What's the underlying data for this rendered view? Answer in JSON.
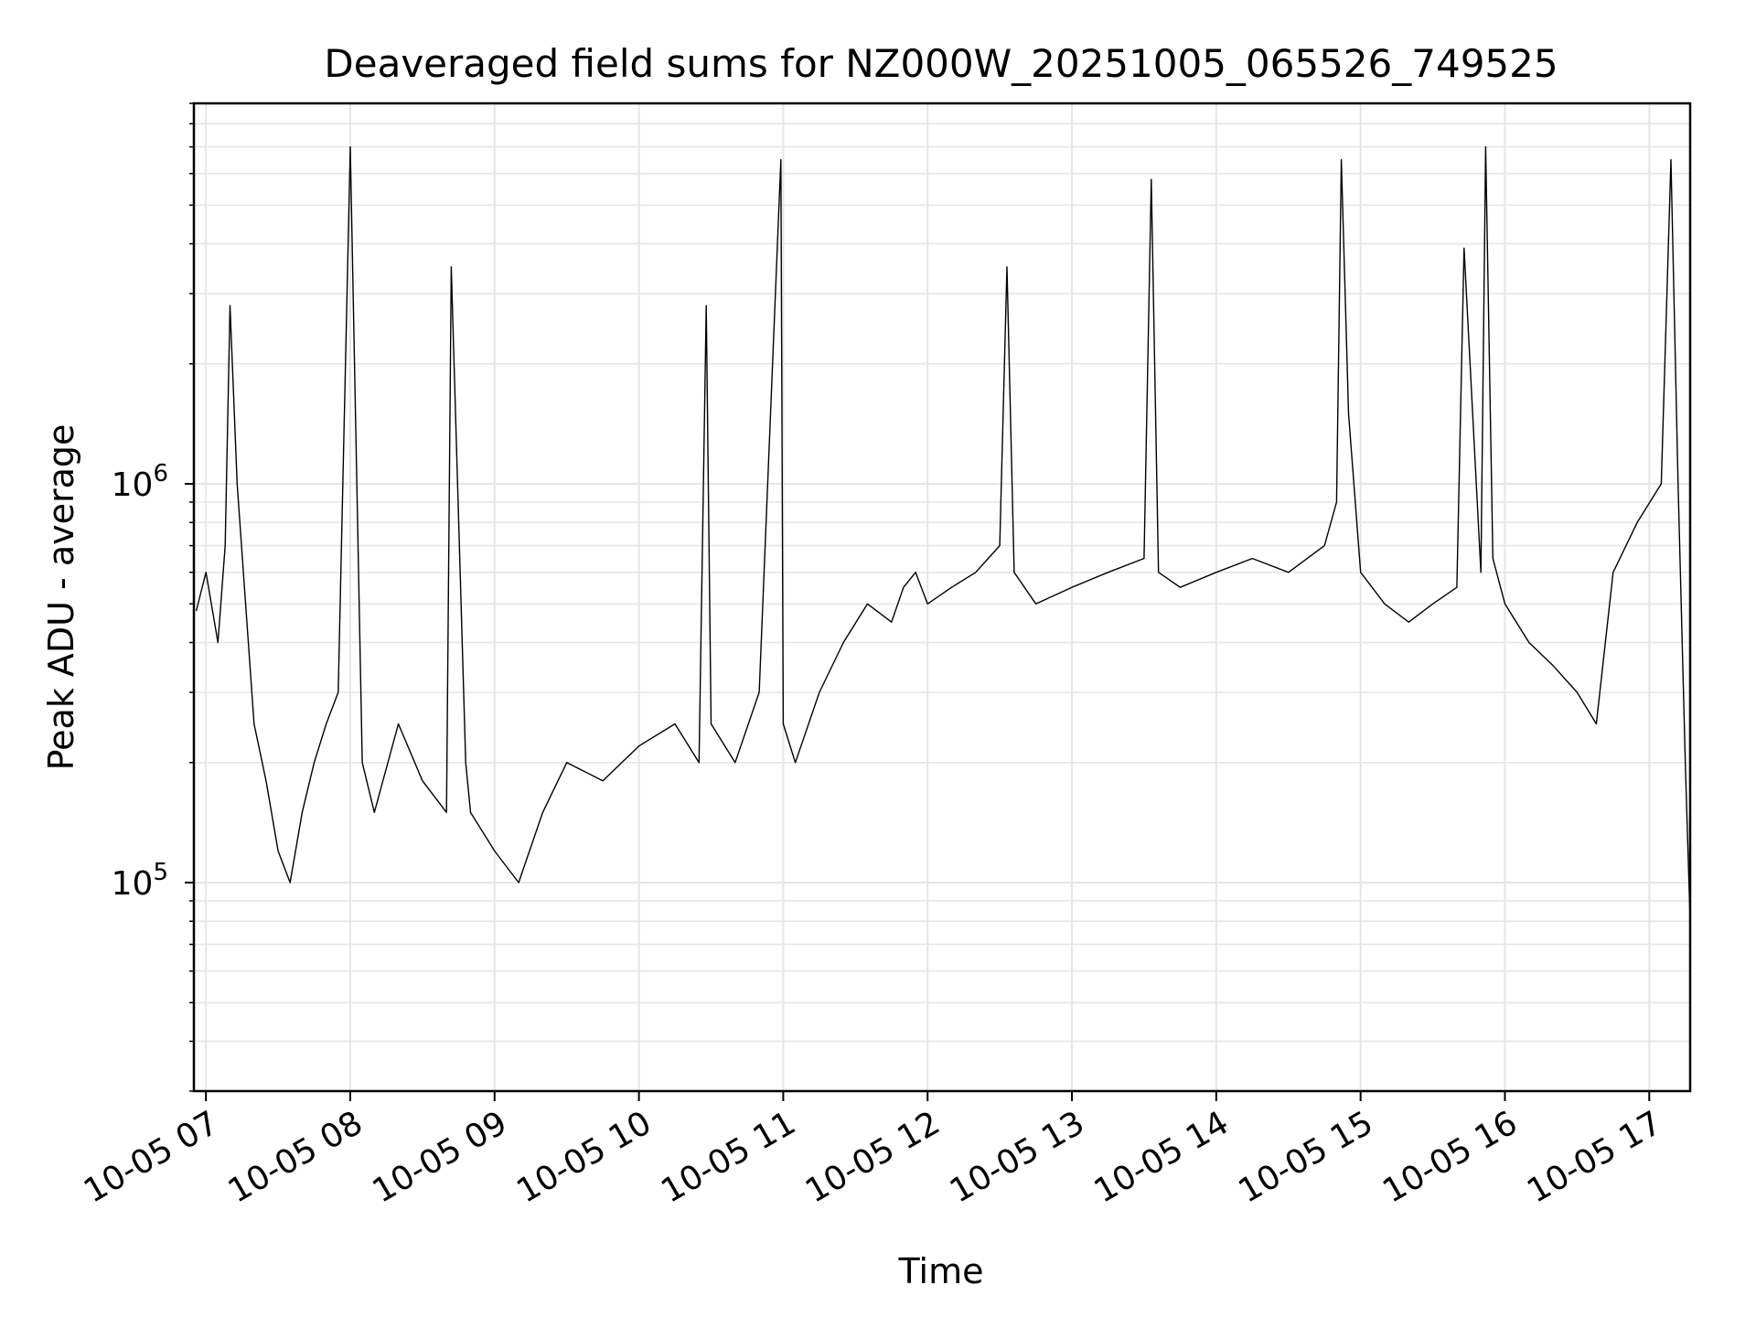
{
  "chart_data": {
    "type": "line",
    "title": "Deaveraged field sums for NZ000W_20251005_065526_749525",
    "xlabel": "Time",
    "ylabel": "Peak ADU - average",
    "yscale": "log",
    "ylim": [
      30000,
      9000000
    ],
    "xlim": [
      "10-05 06:55",
      "10-05 17:17"
    ],
    "grid": true,
    "line_color": "#000000",
    "grid_color": "#e6e6e6",
    "x_ticks": [
      "10-05 07",
      "10-05 08",
      "10-05 09",
      "10-05 10",
      "10-05 11",
      "10-05 12",
      "10-05 13",
      "10-05 14",
      "10-05 15",
      "10-05 16",
      "10-05 17"
    ],
    "y_ticks": [
      {
        "base": "10",
        "exp": "5",
        "value": 100000
      },
      {
        "base": "10",
        "exp": "6",
        "value": 1000000
      }
    ],
    "series": [
      {
        "x": [
          "10-05 06:56",
          "10-05 07:00",
          "10-05 07:05",
          "10-05 07:08",
          "10-05 07:10",
          "10-05 07:13",
          "10-05 07:20",
          "10-05 07:25",
          "10-05 07:30",
          "10-05 07:35",
          "10-05 07:40",
          "10-05 07:45",
          "10-05 07:50",
          "10-05 07:55",
          "10-05 08:00",
          "10-05 08:05",
          "10-05 08:10",
          "10-05 08:20",
          "10-05 08:30",
          "10-05 08:40",
          "10-05 08:42",
          "10-05 08:48",
          "10-05 08:50",
          "10-05 09:00",
          "10-05 09:10",
          "10-05 09:20",
          "10-05 09:30",
          "10-05 09:45",
          "10-05 10:00",
          "10-05 10:15",
          "10-05 10:25",
          "10-05 10:28",
          "10-05 10:30",
          "10-05 10:40",
          "10-05 10:50",
          "10-05 10:59",
          "10-05 11:00",
          "10-05 11:05",
          "10-05 11:15",
          "10-05 11:25",
          "10-05 11:35",
          "10-05 11:45",
          "10-05 11:50",
          "10-05 11:55",
          "10-05 12:00",
          "10-05 12:10",
          "10-05 12:20",
          "10-05 12:30",
          "10-05 12:33",
          "10-05 12:36",
          "10-05 12:45",
          "10-05 13:00",
          "10-05 13:15",
          "10-05 13:30",
          "10-05 13:33",
          "10-05 13:36",
          "10-05 13:45",
          "10-05 14:00",
          "10-05 14:15",
          "10-05 14:30",
          "10-05 14:45",
          "10-05 14:50",
          "10-05 14:52",
          "10-05 14:55",
          "10-05 15:00",
          "10-05 15:10",
          "10-05 15:20",
          "10-05 15:30",
          "10-05 15:40",
          "10-05 15:43",
          "10-05 15:50",
          "10-05 15:52",
          "10-05 15:55",
          "10-05 16:00",
          "10-05 16:10",
          "10-05 16:20",
          "10-05 16:30",
          "10-05 16:38",
          "10-05 16:45",
          "10-05 16:55",
          "10-05 17:05",
          "10-05 17:09",
          "10-05 17:12",
          "10-05 17:15",
          "10-05 17:17"
        ],
        "y": [
          480000,
          600000,
          400000,
          700000,
          2800000,
          1000000,
          250000,
          180000,
          120000,
          100000,
          150000,
          200000,
          250000,
          300000,
          7000000,
          200000,
          150000,
          250000,
          180000,
          150000,
          3500000,
          200000,
          150000,
          120000,
          100000,
          150000,
          200000,
          180000,
          220000,
          250000,
          200000,
          2800000,
          250000,
          200000,
          300000,
          6500000,
          250000,
          200000,
          300000,
          400000,
          500000,
          450000,
          550000,
          600000,
          500000,
          550000,
          600000,
          700000,
          3500000,
          600000,
          500000,
          550000,
          600000,
          650000,
          5800000,
          600000,
          550000,
          600000,
          650000,
          600000,
          700000,
          900000,
          6500000,
          1500000,
          600000,
          500000,
          450000,
          500000,
          550000,
          3900000,
          600000,
          7000000,
          650000,
          500000,
          400000,
          350000,
          300000,
          250000,
          600000,
          800000,
          1000000,
          6500000,
          1000000,
          200000,
          80000
        ]
      }
    ]
  }
}
